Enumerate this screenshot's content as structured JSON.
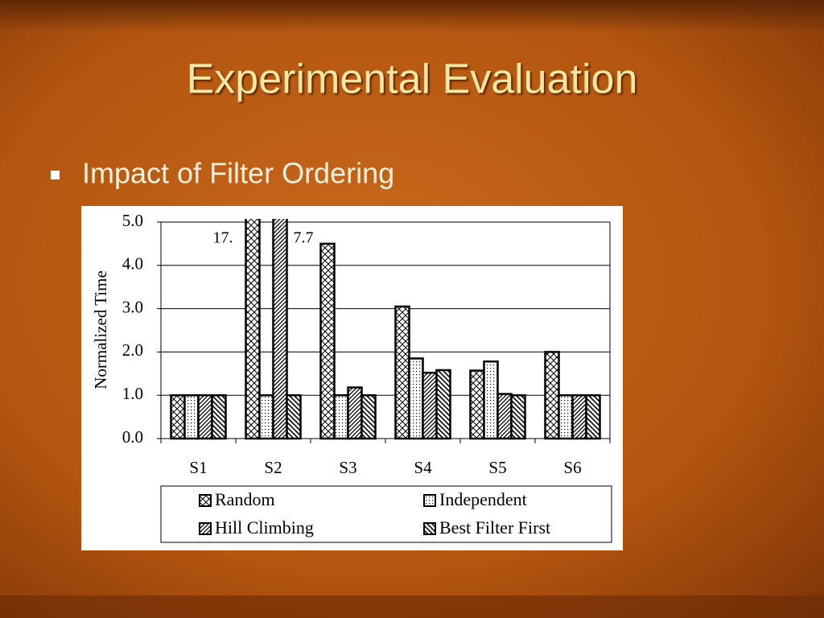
{
  "title": "Experimental Evaluation",
  "bullet": "Impact of Filter Ordering",
  "chart_data": {
    "type": "bar",
    "ylabel": "Normalized Time",
    "categories": [
      "S1",
      "S2",
      "S3",
      "S4",
      "S5",
      "S6"
    ],
    "series": [
      {
        "name": "Random",
        "color": "#000000",
        "pattern": "crosshatch",
        "values": [
          1.0,
          17,
          4.5,
          3.05,
          1.57,
          2.0
        ],
        "value_labels": [
          null,
          "17.",
          null,
          null,
          null,
          null
        ]
      },
      {
        "name": "Independent",
        "color": "#000000",
        "pattern": "dots",
        "values": [
          1.0,
          1.0,
          1.0,
          1.85,
          1.78,
          1.0
        ]
      },
      {
        "name": "Hill Climbing",
        "color": "#000000",
        "pattern": "diagonal",
        "values": [
          1.0,
          7.7,
          1.18,
          1.52,
          1.03,
          1.0
        ],
        "value_labels": [
          null,
          "7.7",
          null,
          null,
          null,
          null
        ]
      },
      {
        "name": "Best Filter First",
        "color": "#000000",
        "pattern": "backdiagonal",
        "values": [
          1.0,
          1.0,
          1.0,
          1.58,
          1.0,
          1.0
        ]
      }
    ],
    "ylim": [
      0,
      5
    ],
    "yticks": [
      {
        "value": 0,
        "label": "0.0"
      },
      {
        "value": 1,
        "label": "1.0"
      },
      {
        "value": 2,
        "label": "2.0"
      },
      {
        "value": 3,
        "label": "3.0"
      },
      {
        "value": 4,
        "label": "4.0"
      },
      {
        "value": 5,
        "label": "5.0"
      }
    ],
    "grid": true,
    "legend": "bottom"
  }
}
